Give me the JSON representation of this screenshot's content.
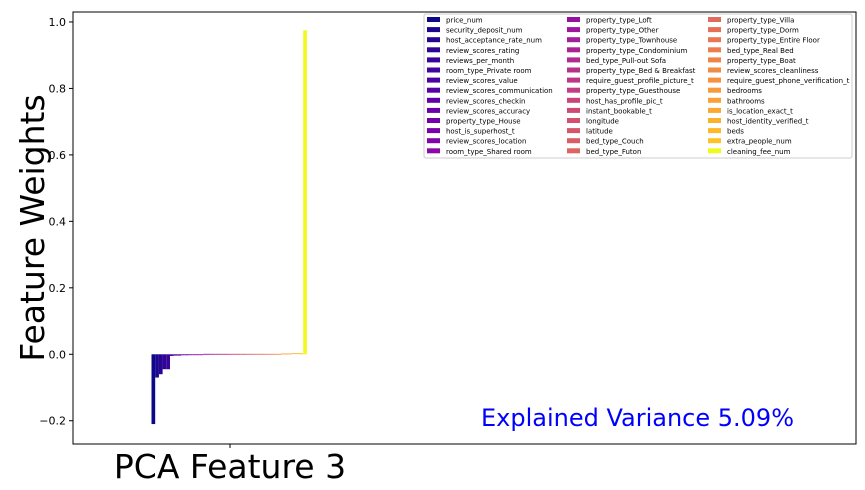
{
  "chart_data": {
    "type": "bar",
    "xlabel": "PCA Feature 3",
    "ylabel": "Feature Weights",
    "ylim": [
      -0.27,
      1.03
    ],
    "yticks": [
      -0.2,
      0.0,
      0.2,
      0.4,
      0.6,
      0.8,
      1.0
    ],
    "ytick_labels": [
      "−0.2",
      "0.0",
      "0.2",
      "0.4",
      "0.6",
      "0.8",
      "1.0"
    ],
    "annotation": "Explained Variance 5.09%",
    "annotation_color": "#0000ff",
    "grid": false,
    "legend_position": "top-right",
    "legend_columns": 3,
    "colormap": "plasma",
    "series": [
      {
        "name": "price_num",
        "value": -0.21,
        "color": "#0d0887"
      },
      {
        "name": "security_deposit_num",
        "value": -0.07,
        "color": "#1b068d"
      },
      {
        "name": "host_acceptance_rate_num",
        "value": -0.06,
        "color": "#260591"
      },
      {
        "name": "review_scores_rating",
        "value": -0.045,
        "color": "#2f0596"
      },
      {
        "name": "reviews_per_month",
        "value": -0.045,
        "color": "#39049a"
      },
      {
        "name": "room_type_Private room",
        "value": -0.005,
        "color": "#43039e"
      },
      {
        "name": "review_scores_value",
        "value": -0.004,
        "color": "#4c02a1"
      },
      {
        "name": "review_scores_communication",
        "value": -0.004,
        "color": "#5602a4"
      },
      {
        "name": "review_scores_checkin",
        "value": -0.003,
        "color": "#5f01a6"
      },
      {
        "name": "review_scores_accuracy",
        "value": -0.003,
        "color": "#6900a8"
      },
      {
        "name": "property_type_House",
        "value": -0.002,
        "color": "#7201a8"
      },
      {
        "name": "host_is_superhost_t",
        "value": -0.002,
        "color": "#7b02a8"
      },
      {
        "name": "review_scores_location",
        "value": -0.001,
        "color": "#8405a7"
      },
      {
        "name": "room_type_Shared room",
        "value": -0.001,
        "color": "#8d0ba5"
      },
      {
        "name": "property_type_Loft",
        "value": 0.0,
        "color": "#9511a1"
      },
      {
        "name": "property_type_Other",
        "value": 0.0,
        "color": "#9c179e"
      },
      {
        "name": "property_type_Townhouse",
        "value": 0.0,
        "color": "#a31e9a"
      },
      {
        "name": "property_type_Condominium",
        "value": 0.0,
        "color": "#aa2395"
      },
      {
        "name": "bed_type_Pull-out Sofa",
        "value": 0.0,
        "color": "#b12a90"
      },
      {
        "name": "property_type_Bed & Breakfast",
        "value": 0.0,
        "color": "#b7318a"
      },
      {
        "name": "require_guest_profile_picture_t",
        "value": 0.0,
        "color": "#bd3786"
      },
      {
        "name": "property_type_Guesthouse",
        "value": 0.0,
        "color": "#c33d80"
      },
      {
        "name": "host_has_profile_pic_t",
        "value": 0.0,
        "color": "#c8447a"
      },
      {
        "name": "instant_bookable_t",
        "value": 0.0,
        "color": "#cc4a74"
      },
      {
        "name": "longitude",
        "value": 0.0,
        "color": "#d1516f"
      },
      {
        "name": "latitude",
        "value": 0.0,
        "color": "#d5576a"
      },
      {
        "name": "bed_type_Couch",
        "value": 0.0,
        "color": "#da5e65"
      },
      {
        "name": "bed_type_Futon",
        "value": 0.0,
        "color": "#de6461"
      },
      {
        "name": "property_type_Villa",
        "value": 0.0,
        "color": "#e16a5c"
      },
      {
        "name": "property_type_Dorm",
        "value": 0.0,
        "color": "#e57057"
      },
      {
        "name": "property_type_Entire Floor",
        "value": 0.0,
        "color": "#e97753"
      },
      {
        "name": "bed_type_Real Bed",
        "value": 0.0,
        "color": "#ec7d4e"
      },
      {
        "name": "property_type_Boat",
        "value": 0.0,
        "color": "#ef8449"
      },
      {
        "name": "review_scores_cleanliness",
        "value": 0.0,
        "color": "#f28b45"
      },
      {
        "name": "require_guest_phone_verification_t",
        "value": 0.0,
        "color": "#f59240"
      },
      {
        "name": "bedrooms",
        "value": 0.001,
        "color": "#f79a3b"
      },
      {
        "name": "bathrooms",
        "value": 0.001,
        "color": "#f9a136"
      },
      {
        "name": "is_location_exact_t",
        "value": 0.001,
        "color": "#fba832"
      },
      {
        "name": "host_identity_verified_t",
        "value": 0.002,
        "color": "#fcb12d"
      },
      {
        "name": "beds",
        "value": 0.002,
        "color": "#fdb92a"
      },
      {
        "name": "extra_people_num",
        "value": 0.003,
        "color": "#fdc227"
      },
      {
        "name": "cleaning_fee_num",
        "value": 0.975,
        "color": "#f0f921"
      }
    ]
  }
}
